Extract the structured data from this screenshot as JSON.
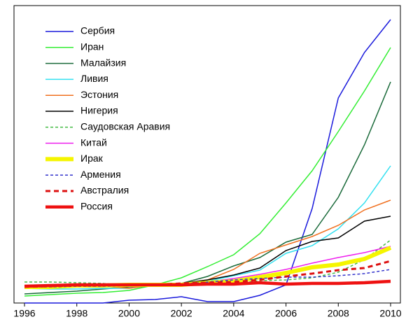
{
  "chart_data": {
    "type": "line",
    "x": [
      1996,
      1997,
      1998,
      1999,
      2000,
      2001,
      2002,
      2003,
      2004,
      2005,
      2006,
      2007,
      2008,
      2009,
      2010
    ],
    "xlim": [
      1996,
      2010
    ],
    "xticks": [
      1996,
      1998,
      2000,
      2002,
      2004,
      2006,
      2008,
      2010
    ],
    "ylim": [
      0,
      425
    ],
    "legend": "upper left",
    "series": [
      {
        "name": "Сербия",
        "color": "#1a1adc",
        "width": 1.5,
        "dashed": false,
        "values": [
          0,
          0,
          0,
          0,
          4,
          5,
          9,
          2,
          2,
          11,
          26,
          135,
          293,
          358,
          405
        ]
      },
      {
        "name": "Иран",
        "color": "#33ee33",
        "width": 1.5,
        "dashed": false,
        "values": [
          10,
          12,
          14,
          15,
          18,
          26,
          36,
          52,
          69,
          99,
          143,
          189,
          245,
          303,
          365
        ]
      },
      {
        "name": "Малайзия",
        "color": "#1a6a3a",
        "width": 1.5,
        "dashed": false,
        "values": [
          13,
          15,
          17,
          20,
          23,
          26,
          28,
          38,
          53,
          65,
          87,
          98,
          151,
          226,
          316
        ]
      },
      {
        "name": "Ливия",
        "color": "#33e0f0",
        "width": 1.5,
        "dashed": false,
        "values": [
          21,
          20,
          20,
          21,
          21,
          26,
          28,
          31,
          39,
          47,
          71,
          82,
          106,
          143,
          196
        ]
      },
      {
        "name": "Эстония",
        "color": "#f07020",
        "width": 1.5,
        "dashed": false,
        "values": [
          21,
          23,
          24,
          24,
          21,
          26,
          28,
          33,
          48,
          71,
          83,
          95,
          111,
          133,
          147
        ]
      },
      {
        "name": "Нигерия",
        "color": "#000000",
        "width": 1.5,
        "dashed": false,
        "values": [
          23,
          24,
          25,
          25,
          26,
          26,
          28,
          33,
          40,
          50,
          75,
          88,
          93,
          117,
          124
        ]
      },
      {
        "name": "Саудовская Аравия",
        "color": "#44bb44",
        "width": 1.5,
        "dashed": true,
        "values": [
          30,
          30,
          29,
          28,
          25,
          26,
          28,
          29,
          28,
          32,
          33,
          36,
          44,
          62,
          90
        ]
      },
      {
        "name": "Китай",
        "color": "#ee22ee",
        "width": 1.5,
        "dashed": false,
        "values": [
          25,
          26,
          26,
          26,
          26,
          26,
          27,
          30,
          35,
          41,
          48,
          57,
          65,
          72,
          81
        ]
      },
      {
        "name": "Ирак",
        "color": "#f5f500",
        "width": 6,
        "dashed": false,
        "values": [
          23,
          23,
          25,
          25,
          26,
          26,
          26,
          29,
          31,
          37,
          43,
          51,
          55,
          63,
          79
        ]
      },
      {
        "name": "Армения",
        "color": "#3333cc",
        "width": 1.5,
        "dashed": true,
        "values": [
          23,
          23,
          24,
          24,
          25,
          26,
          27,
          30,
          33,
          35,
          37,
          37,
          39,
          42,
          48
        ]
      },
      {
        "name": "Австралия",
        "color": "#dd1111",
        "width": 3,
        "dashed": true,
        "values": [
          23,
          24,
          25,
          25,
          26,
          26,
          28,
          29,
          30,
          33,
          38,
          42,
          47,
          50,
          60
        ]
      },
      {
        "name": "Россия",
        "color": "#ee1111",
        "width": 4.5,
        "dashed": false,
        "values": [
          24,
          25,
          26,
          26,
          26,
          26,
          26,
          27,
          27,
          29,
          27,
          28,
          28,
          29,
          31
        ]
      }
    ]
  }
}
